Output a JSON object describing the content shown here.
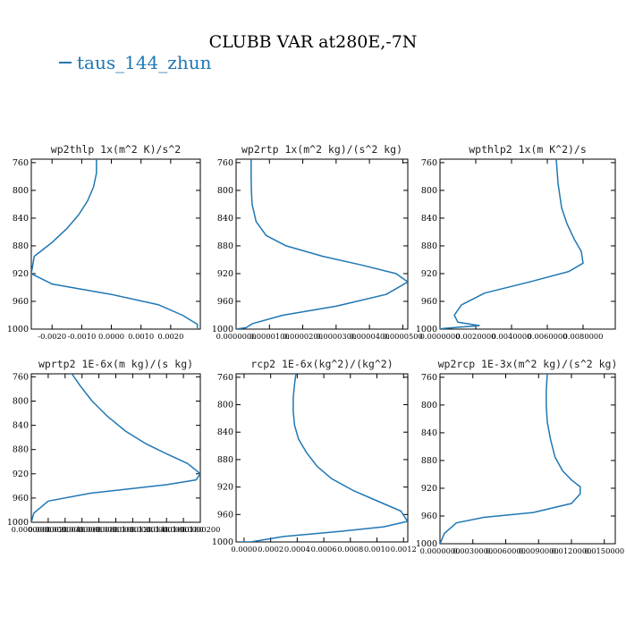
{
  "figure": {
    "title": "CLUBB VAR at280E,-7N",
    "legend_label": "taus_144_zhun",
    "line_color": "#1f77b4"
  },
  "chart_data": [
    {
      "type": "line",
      "title": "wp2thlp  1x(m^2 K)/s^2",
      "xlim": [
        -0.0027,
        0.003
      ],
      "ylim": [
        1000,
        755
      ],
      "xticks": [
        -0.002,
        -0.001,
        0.0,
        0.001,
        0.002
      ],
      "xtick_labels": [
        "-0.0020",
        "-0.0010",
        "0.0000",
        "0.0010",
        "0.0020"
      ],
      "yticks": [
        760,
        800,
        840,
        880,
        920,
        960,
        1000
      ],
      "series": [
        {
          "x": [
            -0.0005,
            -0.0005,
            -0.0006,
            -0.0008,
            -0.0011,
            -0.0015,
            -0.002,
            -0.0026,
            -0.0027,
            -0.002,
            0.0,
            0.0016,
            0.0024,
            0.0029,
            0.0029
          ],
          "y": [
            755,
            775,
            795,
            815,
            835,
            855,
            875,
            895,
            920,
            935,
            950,
            965,
            980,
            993,
            1000
          ]
        }
      ]
    },
    {
      "type": "line",
      "title": "wp2rtp  1x(m^2 kg)/(s^2 kg)",
      "xlim": [
        0.0,
        5.15e-05
      ],
      "ylim": [
        1000,
        755
      ],
      "xticks": [
        0.0,
        1e-05,
        2e-05,
        3e-05,
        4e-05,
        5e-05
      ],
      "xtick_labels": [
        "0.0000000",
        "0.0000100",
        "0.0000200",
        "0.0000300",
        "0.0000400",
        "0.0000500"
      ],
      "yticks": [
        760,
        800,
        840,
        880,
        920,
        960,
        1000
      ],
      "series": [
        {
          "x": [
            4.5e-06,
            4.5e-06,
            4.6e-06,
            4.8e-06,
            6e-06,
            9e-06,
            1.5e-05,
            2.6e-05,
            3.8e-05,
            4.8e-05,
            5.15e-05,
            4.5e-05,
            3e-05,
            1.4e-05,
            5e-06,
            3e-06,
            0.0
          ],
          "y": [
            755,
            780,
            800,
            820,
            845,
            865,
            880,
            895,
            908,
            920,
            932,
            950,
            967,
            980,
            992,
            998,
            1000
          ]
        }
      ]
    },
    {
      "type": "line",
      "title": "wpthlp2  1x(m K^2)/s",
      "xlim": [
        0.0,
        0.0098
      ],
      "ylim": [
        1000,
        755
      ],
      "xticks": [
        0.0,
        0.002,
        0.004,
        0.006,
        0.008
      ],
      "xtick_labels": [
        "0.0000000",
        "0.0020000",
        "0.0040000",
        "0.0060000",
        "0.0080000"
      ],
      "yticks": [
        760,
        800,
        840,
        880,
        920,
        960,
        1000
      ],
      "series": [
        {
          "x": [
            0.0065,
            0.0066,
            0.0068,
            0.0071,
            0.0075,
            0.0079,
            0.008,
            0.0072,
            0.005,
            0.0025,
            0.0012,
            0.0008,
            0.001,
            0.0022,
            0.0002,
            0.0
          ],
          "y": [
            755,
            790,
            825,
            848,
            870,
            888,
            905,
            917,
            932,
            948,
            965,
            980,
            990,
            995,
            999,
            1000
          ]
        }
      ]
    },
    {
      "type": "line",
      "title": "wprtp2  1E-6x(m kg)/(s kg)",
      "xlim": [
        0.0,
        2e-05
      ],
      "ylim": [
        1000,
        755
      ],
      "xticks": [
        0.0,
        2e-06,
        4e-06,
        6e-06,
        8e-06,
        1e-05,
        1.2e-05,
        1.4e-05,
        1.6e-05,
        1.8e-05,
        2e-05
      ],
      "xtick_labels": [
        "0.0000000",
        "0.0000020",
        "0.0000040",
        "0.0000060",
        "0.0000080",
        "0.0000100",
        "0.0000120",
        "0.0000140",
        "0.0000160",
        "0.0000180",
        "0.0000200"
      ],
      "yticks": [
        760,
        800,
        840,
        880,
        920,
        960,
        1000
      ],
      "series": [
        {
          "x": [
            4.8e-06,
            5.8e-06,
            7.2e-06,
            9e-06,
            1.12e-05,
            1.35e-05,
            1.6e-05,
            1.85e-05,
            2e-05,
            1.95e-05,
            1.6e-05,
            7e-06,
            2e-06,
            3e-07,
            0.0
          ],
          "y": [
            755,
            775,
            800,
            825,
            850,
            870,
            887,
            903,
            920,
            930,
            938,
            952,
            965,
            985,
            1000
          ]
        }
      ]
    },
    {
      "type": "line",
      "title": "rcp2  1E-6x(kg^2)/(kg^2)",
      "xlim": [
        -6e-05,
        0.001232
      ],
      "ylim": [
        1000,
        755
      ],
      "xticks": [
        0.0,
        0.0002,
        0.0004,
        0.0006,
        0.0008,
        0.001,
        0.0012
      ],
      "xtick_labels": [
        "0.0000",
        "0.0002",
        "0.0004",
        "0.0006",
        "0.0008",
        "0.0010",
        "0.0012"
      ],
      "yticks": [
        760,
        800,
        840,
        880,
        920,
        960,
        1000
      ],
      "series": [
        {
          "x": [
            0.00039,
            0.00038,
            0.00037,
            0.00037,
            0.00038,
            0.00041,
            0.00047,
            0.00055,
            0.00066,
            0.00082,
            0.001,
            0.00118,
            0.00123,
            0.00105,
            0.0007,
            0.0003,
            5e-05,
            -3e-05
          ],
          "y": [
            755,
            770,
            790,
            810,
            830,
            850,
            870,
            890,
            908,
            925,
            940,
            955,
            970,
            978,
            985,
            992,
            1000,
            1000
          ]
        }
      ]
    },
    {
      "type": "line",
      "title": "wp2rcp  1E-3x(m^2 kg)/(s^2 kg)",
      "xlim": [
        0.0,
        0.016
      ],
      "ylim": [
        1000,
        755
      ],
      "xticks": [
        0.0,
        0.003,
        0.006,
        0.009,
        0.012,
        0.015
      ],
      "xtick_labels": [
        "0.0000000",
        "0.0030000",
        "0.0060000",
        "0.0090000",
        "0.0120000",
        "0.0150000"
      ],
      "yticks": [
        760,
        800,
        840,
        880,
        920,
        960,
        1000
      ],
      "series": [
        {
          "x": [
            0.0098,
            0.0097,
            0.0097,
            0.0098,
            0.0101,
            0.0105,
            0.0112,
            0.012,
            0.0128,
            0.0128,
            0.012,
            0.0085,
            0.004,
            0.0015,
            0.0004,
            0.0
          ],
          "y": [
            755,
            780,
            800,
            825,
            850,
            875,
            895,
            908,
            918,
            928,
            942,
            955,
            962,
            970,
            985,
            1000
          ]
        }
      ]
    }
  ]
}
